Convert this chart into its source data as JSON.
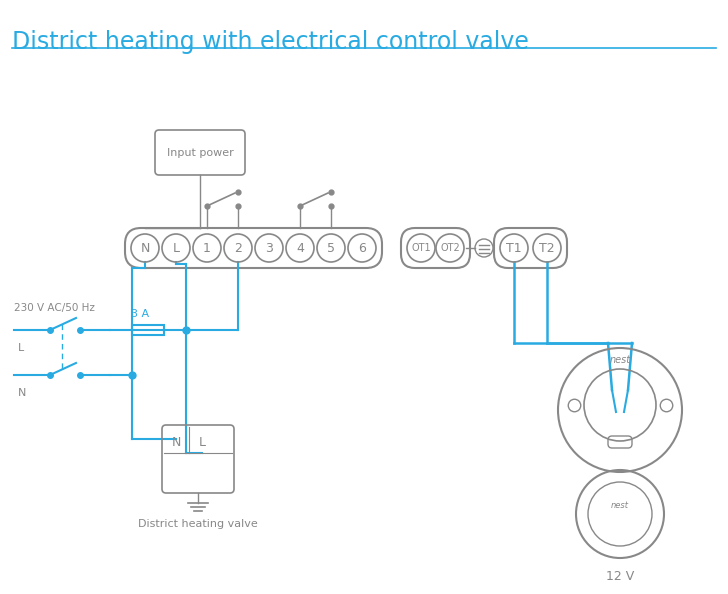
{
  "title": "District heating with electrical control valve",
  "title_color": "#29abe2",
  "title_fontsize": 17,
  "bg_color": "#ffffff",
  "line_color": "#29abe2",
  "diagram_color": "#888888",
  "terminal_labels": [
    "N",
    "L",
    "1",
    "2",
    "3",
    "4",
    "5",
    "6"
  ],
  "ot_labels": [
    "OT1",
    "OT2"
  ],
  "right_labels": [
    "T1",
    "T2"
  ],
  "label_3A": "3 A",
  "label_230V": "230 V AC/50 Hz",
  "label_L": "L",
  "label_N": "N",
  "label_input_power": "Input power",
  "label_district": "District heating valve",
  "label_12V": "12 V",
  "label_nest_top": "nest",
  "label_nest_bottom": "nest"
}
